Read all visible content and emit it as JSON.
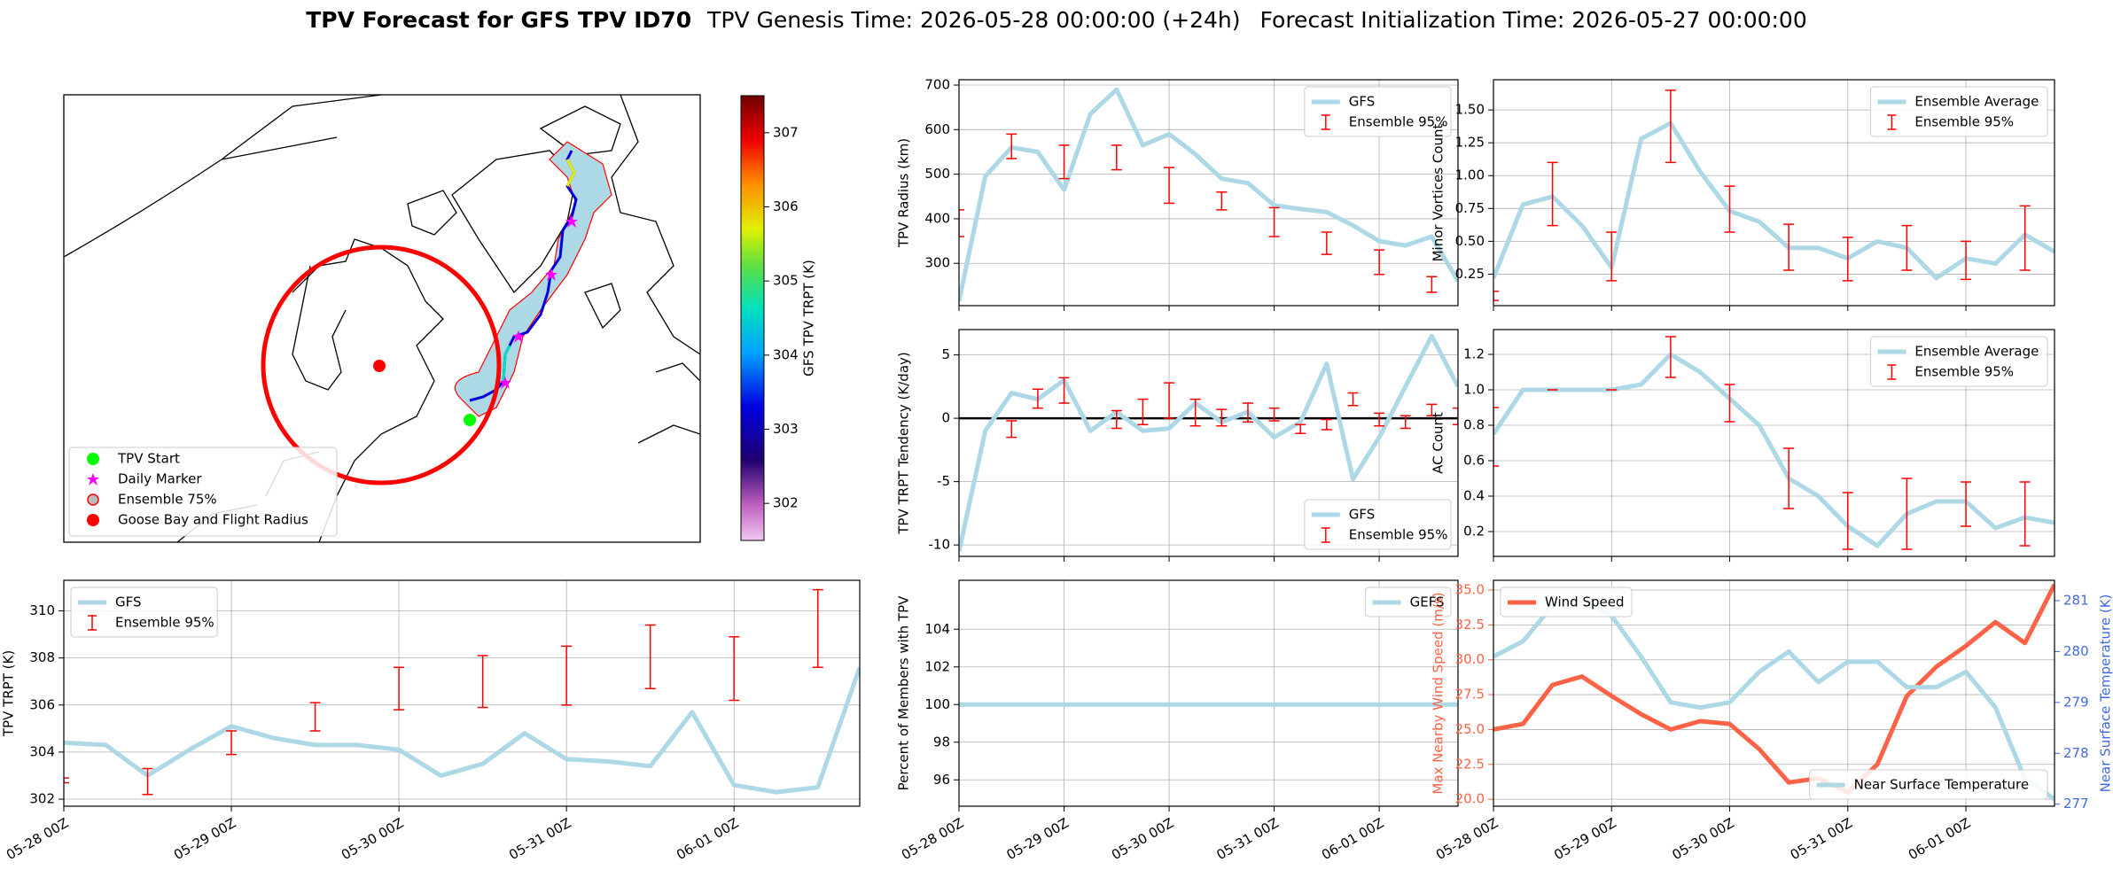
{
  "header": {
    "title": "TPV Forecast for GFS TPV ID70",
    "genesis": "TPV Genesis Time: 2026-05-28 00:00:00 (+24h)",
    "init": "Forecast Initialization Time: 2026-05-27 00:00:00"
  },
  "map": {
    "legend": [
      "TPV Start",
      "Daily Marker",
      "Ensemble 75%",
      "Goose Bay and Flight Radius"
    ],
    "colorbar": {
      "label": "GFS TPV TRPT (K)",
      "lim": [
        301.5,
        307.5
      ],
      "ticks": [
        302,
        303,
        304,
        305,
        306,
        307
      ]
    }
  },
  "chart_data": [
    {
      "type": "line",
      "ylabel": "TPV Radius (km)",
      "grid": true,
      "legend": "upper right",
      "xticklabels": false,
      "x": [
        "05-28 00Z",
        "05-28 06Z",
        "05-28 12Z",
        "05-28 18Z",
        "05-29 00Z",
        "05-29 06Z",
        "05-29 12Z",
        "05-29 18Z",
        "05-30 00Z",
        "05-30 06Z",
        "05-30 12Z",
        "05-30 18Z",
        "05-31 00Z",
        "05-31 06Z",
        "05-31 12Z",
        "05-31 18Z",
        "06-01 00Z",
        "06-01 06Z",
        "06-01 12Z",
        "06-01 18Z"
      ],
      "xlim": [
        "05-28 00Z",
        "06-01 18Z"
      ],
      "xticks": [
        "05-28 00Z",
        "05-29 00Z",
        "05-30 00Z",
        "05-31 00Z",
        "06-01 00Z"
      ],
      "ylim": [
        205,
        712
      ],
      "yticks": [
        300,
        400,
        500,
        600,
        700
      ],
      "series": [
        {
          "name": "GFS",
          "kind": "line",
          "color": "#add8e6",
          "values": [
            215,
            495,
            560,
            550,
            465,
            635,
            690,
            565,
            590,
            545,
            490,
            480,
            430,
            422,
            415,
            385,
            350,
            340,
            360,
            260
          ]
        },
        {
          "name": "Ensemble 95%",
          "kind": "errorbar",
          "color": "#ff0000",
          "lower": [
            360,
            null,
            535,
            null,
            490,
            null,
            510,
            null,
            435,
            null,
            420,
            null,
            360,
            null,
            320,
            null,
            275,
            null,
            235,
            null
          ],
          "upper": [
            420,
            null,
            590,
            null,
            565,
            null,
            565,
            null,
            515,
            null,
            460,
            null,
            425,
            null,
            370,
            null,
            330,
            null,
            270,
            null
          ]
        }
      ]
    },
    {
      "type": "line",
      "ylabel": "TPV TRPT Tendency (K/day)",
      "grid": true,
      "legend": "lower right",
      "xticklabels": false,
      "hline": 0,
      "x": [
        "05-28 00Z",
        "05-28 06Z",
        "05-28 12Z",
        "05-28 18Z",
        "05-29 00Z",
        "05-29 06Z",
        "05-29 12Z",
        "05-29 18Z",
        "05-30 00Z",
        "05-30 06Z",
        "05-30 12Z",
        "05-30 18Z",
        "05-31 00Z",
        "05-31 06Z",
        "05-31 12Z",
        "05-31 18Z",
        "06-01 00Z",
        "06-01 06Z",
        "06-01 12Z",
        "06-01 18Z"
      ],
      "xlim": [
        "05-28 00Z",
        "06-01 18Z"
      ],
      "xticks": [
        "05-28 00Z",
        "05-29 00Z",
        "05-30 00Z",
        "05-31 00Z",
        "06-01 00Z"
      ],
      "ylim": [
        -10.9,
        7.0
      ],
      "yticks": [
        -10,
        -5,
        0,
        5
      ],
      "series": [
        {
          "name": "GFS",
          "kind": "line",
          "color": "#add8e6",
          "values": [
            -10.5,
            -1,
            2,
            1.5,
            3,
            -1,
            0.5,
            -1,
            -0.8,
            1.2,
            -0.3,
            0.5,
            -1.5,
            -0.3,
            4.3,
            -4.8,
            -1.5,
            2.5,
            6.5,
            2.5
          ]
        },
        {
          "name": "Ensemble 95%",
          "kind": "errorbar",
          "color": "#ff0000",
          "lower": [
            null,
            null,
            -1.5,
            0.8,
            1.2,
            null,
            -0.8,
            -0.5,
            0.0,
            -0.6,
            -0.6,
            -0.3,
            -0.2,
            -1.2,
            -0.9,
            1.0,
            -0.6,
            -0.8,
            0.2,
            -0.5
          ],
          "upper": [
            null,
            null,
            -0.2,
            2.3,
            3.2,
            null,
            0.6,
            1.5,
            2.8,
            1.5,
            0.7,
            1.2,
            0.8,
            -0.5,
            -0.1,
            2.0,
            0.4,
            0.2,
            1.1,
            0.8
          ]
        }
      ]
    },
    {
      "type": "line",
      "ylabel": "Minor Vortices Count",
      "grid": true,
      "legend": "upper right",
      "xticklabels": false,
      "x": [
        "05-28 00Z",
        "05-28 06Z",
        "05-28 12Z",
        "05-28 18Z",
        "05-29 00Z",
        "05-29 06Z",
        "05-29 12Z",
        "05-29 18Z",
        "05-30 00Z",
        "05-30 06Z",
        "05-30 12Z",
        "05-30 18Z",
        "05-31 00Z",
        "05-31 06Z",
        "05-31 12Z",
        "05-31 18Z",
        "06-01 00Z",
        "06-01 06Z",
        "06-01 12Z",
        "06-01 18Z"
      ],
      "xlim": [
        "05-28 00Z",
        "06-01 18Z"
      ],
      "xticks": [
        "05-28 00Z",
        "05-29 00Z",
        "05-30 00Z",
        "05-31 00Z",
        "06-01 00Z"
      ],
      "ylim": [
        0.01,
        1.73
      ],
      "yticks": [
        0.25,
        {
          "value": 0.5,
          "label": "0.50"
        },
        0.75,
        {
          "value": 1,
          "label": "1.00"
        },
        1.25,
        {
          "value": 1.5,
          "label": "1.50"
        }
      ],
      "series": [
        {
          "name": "Ensemble Average",
          "kind": "line",
          "color": "#add8e6",
          "values": [
            0.22,
            0.78,
            0.84,
            0.62,
            0.3,
            1.28,
            1.4,
            1.03,
            0.73,
            0.65,
            0.45,
            0.45,
            0.37,
            0.5,
            0.45,
            0.22,
            0.37,
            0.33,
            0.55,
            0.42
          ]
        },
        {
          "name": "Ensemble 95%",
          "kind": "errorbar",
          "color": "#ff0000",
          "lower": [
            0.05,
            null,
            0.62,
            null,
            0.2,
            null,
            1.1,
            null,
            0.57,
            null,
            0.28,
            null,
            0.2,
            null,
            0.28,
            null,
            0.21,
            null,
            0.28,
            null
          ],
          "upper": [
            0.12,
            null,
            1.1,
            null,
            0.57,
            null,
            1.65,
            null,
            0.92,
            null,
            0.63,
            null,
            0.53,
            null,
            0.62,
            null,
            0.5,
            null,
            0.77,
            null
          ]
        }
      ]
    },
    {
      "type": "line",
      "ylabel": "AC Count",
      "grid": true,
      "legend": "upper right",
      "xticklabels": false,
      "x": [
        "05-28 00Z",
        "05-28 06Z",
        "05-28 12Z",
        "05-28 18Z",
        "05-29 00Z",
        "05-29 06Z",
        "05-29 12Z",
        "05-29 18Z",
        "05-30 00Z",
        "05-30 06Z",
        "05-30 12Z",
        "05-30 18Z",
        "05-31 00Z",
        "05-31 06Z",
        "05-31 12Z",
        "05-31 18Z",
        "06-01 00Z",
        "06-01 06Z",
        "06-01 12Z",
        "06-01 18Z"
      ],
      "xlim": [
        "05-28 00Z",
        "06-01 18Z"
      ],
      "xticks": [
        "05-28 00Z",
        "05-29 00Z",
        "05-30 00Z",
        "05-31 00Z",
        "06-01 00Z"
      ],
      "ylim": [
        0.06,
        1.34
      ],
      "yticks": [
        0.2,
        0.4,
        0.6,
        0.8,
        {
          "value": 1,
          "label": "1.0"
        },
        1.2
      ],
      "series": [
        {
          "name": "Ensemble Average",
          "kind": "line",
          "color": "#add8e6",
          "values": [
            0.75,
            1.0,
            1.0,
            1.0,
            1.0,
            1.03,
            1.2,
            1.1,
            0.95,
            0.8,
            0.5,
            0.4,
            0.23,
            0.12,
            0.3,
            0.37,
            0.37,
            0.22,
            0.28,
            0.25
          ]
        },
        {
          "name": "Ensemble 95%",
          "kind": "errorbar",
          "color": "#ff0000",
          "lower": [
            0.57,
            null,
            1.0,
            null,
            1.0,
            null,
            1.07,
            null,
            0.82,
            null,
            0.33,
            null,
            0.1,
            null,
            0.1,
            null,
            0.23,
            null,
            0.12,
            null
          ],
          "upper": [
            0.9,
            null,
            1.0,
            null,
            1.0,
            null,
            1.3,
            null,
            1.03,
            null,
            0.67,
            null,
            0.42,
            null,
            0.5,
            null,
            0.48,
            null,
            0.48,
            null
          ]
        }
      ]
    },
    {
      "type": "line",
      "ylabel": "TPV TRPT (K)",
      "grid": true,
      "legend": "upper left",
      "xticklabels": true,
      "x": [
        "05-28 00Z",
        "05-28 06Z",
        "05-28 12Z",
        "05-28 18Z",
        "05-29 00Z",
        "05-29 06Z",
        "05-29 12Z",
        "05-29 18Z",
        "05-30 00Z",
        "05-30 06Z",
        "05-30 12Z",
        "05-30 18Z",
        "05-31 00Z",
        "05-31 06Z",
        "05-31 12Z",
        "05-31 18Z",
        "06-01 00Z",
        "06-01 06Z",
        "06-01 12Z",
        "06-01 18Z"
      ],
      "xlim": [
        "05-28 00Z",
        "06-01 18Z"
      ],
      "xticks": [
        "05-28 00Z",
        "05-29 00Z",
        "05-30 00Z",
        "05-31 00Z",
        "06-01 00Z"
      ],
      "ylim": [
        301.7,
        311.3
      ],
      "yticks": [
        302,
        304,
        306,
        308,
        310
      ],
      "series": [
        {
          "name": "GFS",
          "kind": "line",
          "color": "#add8e6",
          "values": [
            304.4,
            304.3,
            303.0,
            304.1,
            305.1,
            304.6,
            304.3,
            304.3,
            304.1,
            303.0,
            303.5,
            304.8,
            303.7,
            303.6,
            303.4,
            305.7,
            302.6,
            302.3,
            302.5,
            307.6
          ]
        },
        {
          "name": "Ensemble 95%",
          "kind": "errorbar",
          "color": "#ff0000",
          "lower": [
            302.7,
            null,
            302.2,
            null,
            303.9,
            null,
            304.9,
            null,
            305.8,
            null,
            305.9,
            null,
            306.0,
            null,
            306.7,
            null,
            306.2,
            null,
            307.6,
            null
          ],
          "upper": [
            302.9,
            null,
            303.3,
            null,
            304.9,
            null,
            306.1,
            null,
            307.6,
            null,
            308.1,
            null,
            308.5,
            null,
            309.4,
            null,
            308.9,
            null,
            310.9,
            null
          ]
        }
      ]
    },
    {
      "type": "line",
      "ylabel": "Percent of Members with TPV",
      "grid": true,
      "legend": "upper right",
      "xticklabels": true,
      "x": [
        "05-28 00Z",
        "05-28 06Z",
        "05-28 12Z",
        "05-28 18Z",
        "05-29 00Z",
        "05-29 06Z",
        "05-29 12Z",
        "05-29 18Z",
        "05-30 00Z",
        "05-30 06Z",
        "05-30 12Z",
        "05-30 18Z",
        "05-31 00Z",
        "05-31 06Z",
        "05-31 12Z",
        "05-31 18Z",
        "06-01 00Z",
        "06-01 06Z",
        "06-01 12Z",
        "06-01 18Z"
      ],
      "xlim": [
        "05-28 00Z",
        "06-01 18Z"
      ],
      "xticks": [
        "05-28 00Z",
        "05-29 00Z",
        "05-30 00Z",
        "05-31 00Z",
        "06-01 00Z"
      ],
      "ylim": [
        94.6,
        106.6
      ],
      "yticks": [
        96,
        98,
        100,
        102,
        104
      ],
      "series": [
        {
          "name": "GEFS",
          "kind": "line",
          "color": "#add8e6",
          "values": [
            100,
            100,
            100,
            100,
            100,
            100,
            100,
            100,
            100,
            100,
            100,
            100,
            100,
            100,
            100,
            100,
            100,
            100,
            100,
            100
          ]
        }
      ]
    },
    {
      "type": "line",
      "ylabel": "Max Nearby Wind Speed (m/s)",
      "y2label": "Near Surface Temperature (K)",
      "ycolor": "#ff6347",
      "y2color": "#4169e1",
      "grid": true,
      "legend": "upper left",
      "legend2": "lower right",
      "xticklabels": true,
      "x": [
        "05-28 00Z",
        "05-28 06Z",
        "05-28 12Z",
        "05-28 18Z",
        "05-29 00Z",
        "05-29 06Z",
        "05-29 12Z",
        "05-29 18Z",
        "05-30 00Z",
        "05-30 06Z",
        "05-30 12Z",
        "05-30 18Z",
        "05-31 00Z",
        "05-31 06Z",
        "05-31 12Z",
        "05-31 18Z",
        "06-01 00Z",
        "06-01 06Z",
        "06-01 12Z",
        "06-01 18Z"
      ],
      "xlim": [
        "05-28 00Z",
        "06-01 18Z"
      ],
      "xticks": [
        "05-28 00Z",
        "05-29 00Z",
        "05-30 00Z",
        "05-31 00Z",
        "06-01 00Z"
      ],
      "ylim": [
        19.5,
        35.7
      ],
      "yticks": [
        {
          "value": 20,
          "label": "20.0"
        },
        22.5,
        {
          "value": 25,
          "label": "25.0"
        },
        27.5,
        {
          "value": 30,
          "label": "30.0"
        },
        32.5,
        {
          "value": 35,
          "label": "35.0"
        }
      ],
      "y2lim": [
        276.96,
        281.4
      ],
      "y2ticks": [
        277,
        278,
        279,
        280,
        281
      ],
      "series": [
        {
          "name": "Wind Speed",
          "kind": "line",
          "color": "#ff6347",
          "values": [
            25.0,
            25.4,
            28.2,
            28.8,
            27.4,
            26.1,
            25.0,
            25.6,
            25.4,
            23.6,
            21.2,
            21.5,
            20.5,
            22.5,
            27.4,
            29.5,
            31.0,
            32.7,
            31.2,
            35.4
          ]
        },
        {
          "name": "Near Surface Temperature",
          "kind": "line",
          "axis": "y2",
          "color": "#add8e6",
          "values": [
            279.9,
            280.2,
            280.9,
            281.0,
            280.7,
            279.9,
            279.0,
            278.9,
            279.0,
            279.6,
            280.0,
            279.4,
            279.8,
            279.8,
            279.3,
            279.3,
            279.6,
            278.9,
            277.5,
            277.1
          ]
        }
      ]
    }
  ]
}
